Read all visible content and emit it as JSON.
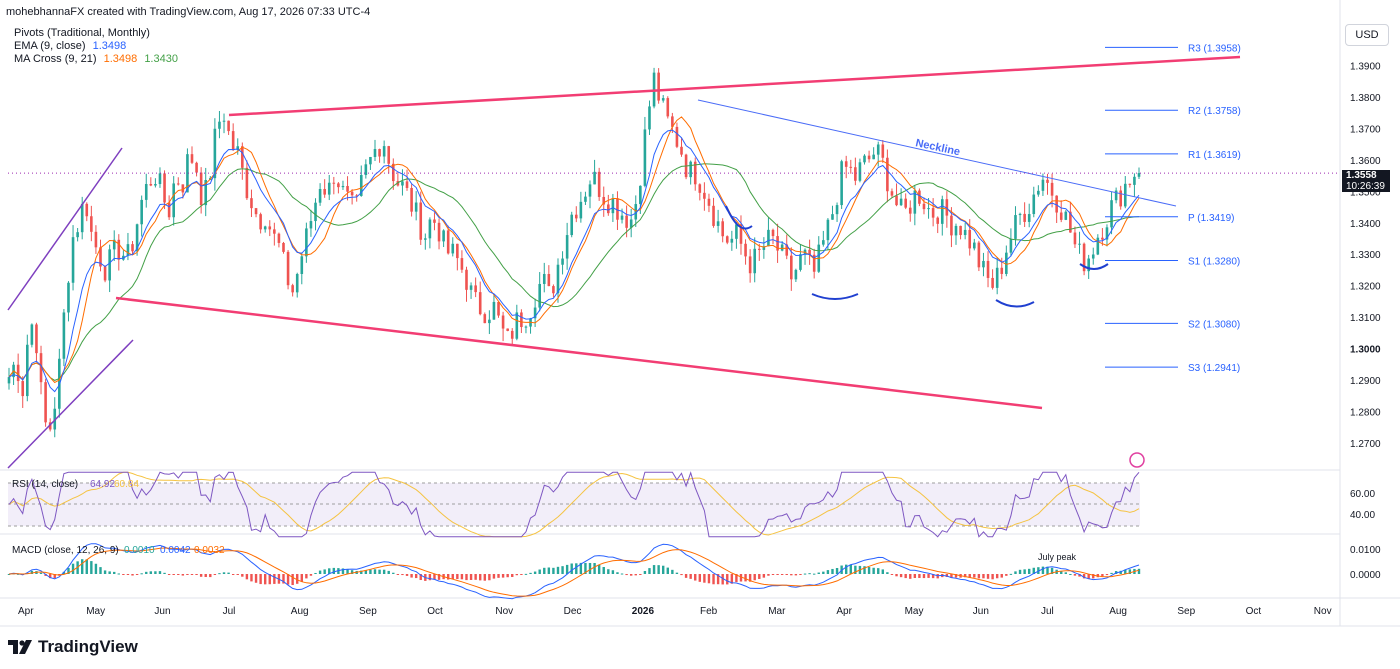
{
  "header": {
    "attribution": "mohebhannaFX created with TradingView.com, Aug 17, 2026 07:33 UTC-4",
    "pivots_label": "Pivots (Traditional, Monthly)",
    "ema_label": "EMA (9, close)",
    "ema_value": "1.3498",
    "ma_cross_label": "MA Cross (9, 21)",
    "ma_cross_value1": "1.3498",
    "ma_cross_value2": "1.3430"
  },
  "currency_button": "USD",
  "price_tag": {
    "price": "1.3558",
    "countdown": "10:26:39"
  },
  "footer": {
    "logo_text": "TradingView"
  },
  "colors": {
    "up": "#26a69a",
    "down": "#ef5350",
    "ema": "#2962ff",
    "ma_fast": "#ff6d00",
    "ma_slow": "#43a047",
    "channel": "#f23d73",
    "parallel": "#7e3fbf",
    "pivot": "#2962ff",
    "neckline": "#4a6cf7",
    "rsi": "#7e57c2",
    "rsi_ma": "#f5c342",
    "macd": "#2962ff",
    "signal": "#ff6d00"
  },
  "chart_data": {
    "type": "candlestick",
    "y_axis_ticks": [
      "1.3900",
      "1.3800",
      "1.3700",
      "1.3600",
      "1.3500",
      "1.3400",
      "1.3300",
      "1.3200",
      "1.3100",
      "1.3000",
      "1.2900",
      "1.2800",
      "1.2700"
    ],
    "ylim": [
      1.262,
      1.4045
    ],
    "x_axis_labels": [
      "Apr",
      "May",
      "Jun",
      "Jul",
      "Aug",
      "Sep",
      "Oct",
      "Nov",
      "Dec",
      "2026",
      "Feb",
      "Mar",
      "Apr",
      "May",
      "Jun",
      "Jul",
      "Aug",
      "Sep",
      "Oct",
      "Nov"
    ],
    "pivots": [
      {
        "label": "R3 (1.3958)",
        "value": 1.3958
      },
      {
        "label": "R2 (1.3758)",
        "value": 1.3758
      },
      {
        "label": "R1 (1.3619)",
        "value": 1.3619
      },
      {
        "label": "P (1.3419)",
        "value": 1.3419
      },
      {
        "label": "S1 (1.3280)",
        "value": 1.328
      },
      {
        "label": "S2 (1.3080)",
        "value": 1.308
      },
      {
        "label": "S3 (1.2941)",
        "value": 1.2941
      }
    ],
    "last_price": 1.3558,
    "price_path": [
      [
        1.291,
        1.296,
        1.287,
        1.31,
        1.302,
        1.276,
        1.275,
        1.288,
        1.312,
        1.334,
        1.34,
        1.348,
        1.335,
        1.33,
        1.325,
        1.33,
        1.332,
        1.328,
        1.335,
        1.346
      ],
      [
        1.352,
        1.356,
        1.35,
        1.343,
        1.355,
        1.352,
        1.362,
        1.358,
        1.346,
        1.356,
        1.371,
        1.375,
        1.365,
        1.362,
        1.353,
        1.347,
        1.341,
        1.343,
        1.336,
        1.332,
        1.323,
        1.318,
        1.328,
        1.336
      ],
      [
        1.345,
        1.354,
        1.349,
        1.357,
        1.35,
        1.346,
        1.343,
        1.354,
        1.359,
        1.364,
        1.367,
        1.358,
        1.353,
        1.351,
        1.346,
        1.341,
        1.336,
        1.342,
        1.338,
        1.331,
        1.33,
        1.327
      ],
      [
        1.322,
        1.315,
        1.313,
        1.312,
        1.313,
        1.306,
        1.302,
        1.308,
        1.31,
        1.312,
        1.318,
        1.322,
        1.316,
        1.325,
        1.334,
        1.342,
        1.346,
        1.35,
        1.355,
        1.352,
        1.348,
        1.347,
        1.344,
        1.342
      ],
      [
        1.341,
        1.355,
        1.372,
        1.386,
        1.378,
        1.372,
        1.368,
        1.363,
        1.356,
        1.356,
        1.352,
        1.347,
        1.341,
        1.336,
        1.334,
        1.336,
        1.331,
        1.327,
        1.329,
        1.333,
        1.335,
        1.331,
        1.327,
        1.322
      ],
      [
        1.328,
        1.329,
        1.323,
        1.33,
        1.337,
        1.345,
        1.355,
        1.358,
        1.354,
        1.358,
        1.36,
        1.363,
        1.359,
        1.352,
        1.346,
        1.342,
        1.346,
        1.35,
        1.347,
        1.343,
        1.344,
        1.343,
        1.34
      ],
      [
        1.34,
        1.336,
        1.333,
        1.327,
        1.322,
        1.32,
        1.325,
        1.333,
        1.338,
        1.343,
        1.345,
        1.35,
        1.355,
        1.352,
        1.348,
        1.344,
        1.338,
        1.331,
        1.328,
        1.33,
        1.336,
        1.34,
        1.345,
        1.348,
        1.352,
        1.355,
        1.358
      ]
    ],
    "rsi": {
      "label": "RSI (14, close)",
      "value": "64.92",
      "ma_value": "60.84",
      "ticks": [
        "60.00",
        "40.00"
      ]
    },
    "macd": {
      "label": "MACD (close, 12, 26, 9)",
      "histogram": "0.0010",
      "macd": "0.0042",
      "signal": "0.0032",
      "ticks": [
        "0.0100",
        "0.0000"
      ]
    },
    "annotations": [
      "Neckline",
      "July peak"
    ]
  }
}
